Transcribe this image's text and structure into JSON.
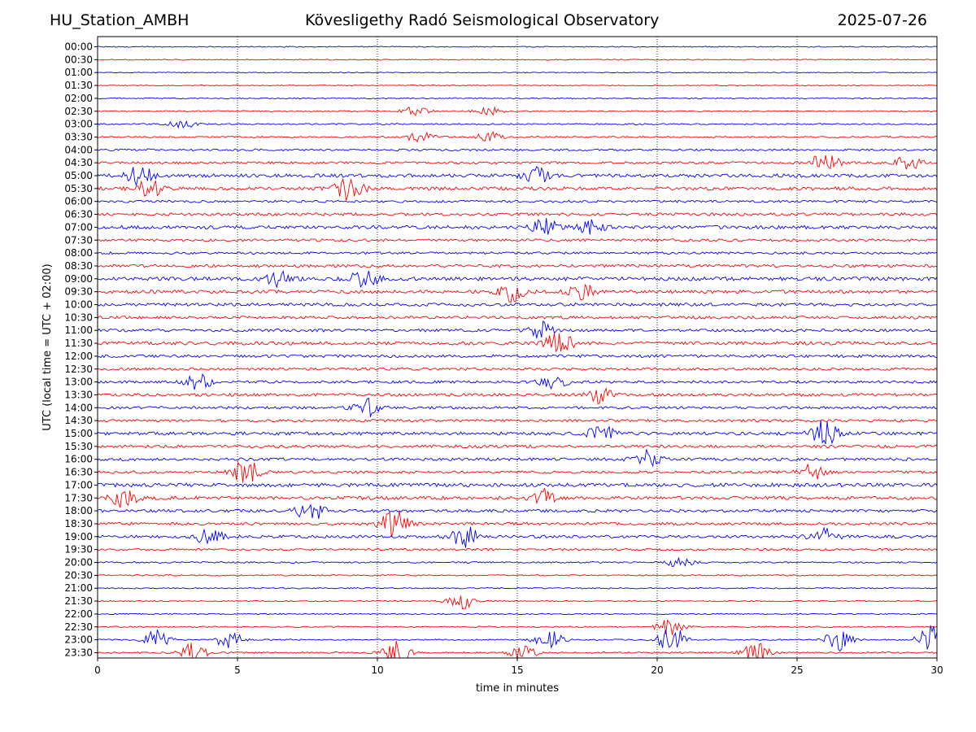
{
  "header": {
    "station": "HU_Station_AMBH",
    "observatory": "Kövesligethy Radó Seismological Observatory",
    "date": "2025-07-26"
  },
  "chart_data": {
    "type": "line",
    "xlabel": "time in minutes",
    "ylabel": "UTC (local time = UTC + 02:00)",
    "xlim": [
      0,
      30
    ],
    "xticks": [
      0,
      5,
      10,
      15,
      20,
      25,
      30
    ],
    "x_gridlines": [
      5,
      10,
      15,
      20,
      25
    ],
    "grid": "vertical dotted",
    "trace_colors": [
      "#0000ff",
      "#ff0000"
    ],
    "rows": [
      "00:00",
      "00:30",
      "01:00",
      "01:30",
      "02:00",
      "02:30",
      "03:00",
      "03:30",
      "04:00",
      "04:30",
      "05:00",
      "05:30",
      "06:00",
      "06:30",
      "07:00",
      "07:30",
      "08:00",
      "08:30",
      "09:00",
      "09:30",
      "10:00",
      "10:30",
      "11:00",
      "11:30",
      "12:00",
      "12:30",
      "13:00",
      "13:30",
      "14:00",
      "14:30",
      "15:00",
      "15:30",
      "16:00",
      "16:30",
      "17:00",
      "17:30",
      "18:00",
      "18:30",
      "19:00",
      "19:30",
      "20:00",
      "20:30",
      "21:00",
      "21:30",
      "22:00",
      "22:30",
      "23:00",
      "23:30"
    ],
    "noise_level": [
      0.4,
      0.4,
      0.35,
      0.35,
      0.45,
      0.45,
      0.55,
      0.6,
      0.8,
      0.9,
      1.3,
      1.3,
      0.9,
      1.1,
      1.3,
      1.0,
      0.9,
      1.1,
      1.4,
      1.3,
      1.2,
      1.1,
      1.1,
      1.3,
      1.1,
      1.0,
      1.0,
      1.1,
      1.0,
      1.0,
      1.2,
      1.1,
      1.1,
      1.0,
      1.4,
      1.3,
      1.1,
      1.1,
      1.1,
      0.8,
      0.6,
      0.5,
      0.45,
      0.45,
      0.45,
      0.5,
      0.5,
      0.6
    ],
    "events": [
      {
        "row": "02:30",
        "minute": 11.3,
        "amplitude": 1.2
      },
      {
        "row": "02:30",
        "minute": 14.0,
        "amplitude": 0.9
      },
      {
        "row": "03:00",
        "minute": 3.0,
        "amplitude": 0.8
      },
      {
        "row": "03:30",
        "minute": 11.5,
        "amplitude": 1.1
      },
      {
        "row": "03:30",
        "minute": 14.0,
        "amplitude": 1.0
      },
      {
        "row": "04:30",
        "minute": 26.0,
        "amplitude": 2.5
      },
      {
        "row": "04:30",
        "minute": 29.0,
        "amplitude": 1.6
      },
      {
        "row": "05:00",
        "minute": 1.5,
        "amplitude": 2.2
      },
      {
        "row": "05:00",
        "minute": 15.7,
        "amplitude": 1.6
      },
      {
        "row": "05:30",
        "minute": 1.8,
        "amplitude": 2.0
      },
      {
        "row": "05:30",
        "minute": 9.0,
        "amplitude": 2.4
      },
      {
        "row": "07:00",
        "minute": 16.0,
        "amplitude": 1.6
      },
      {
        "row": "07:00",
        "minute": 17.6,
        "amplitude": 1.4
      },
      {
        "row": "09:00",
        "minute": 9.5,
        "amplitude": 2.3
      },
      {
        "row": "09:00",
        "minute": 6.5,
        "amplitude": 1.6
      },
      {
        "row": "09:30",
        "minute": 14.8,
        "amplitude": 2.0
      },
      {
        "row": "09:30",
        "minute": 17.3,
        "amplitude": 1.6
      },
      {
        "row": "11:00",
        "minute": 15.8,
        "amplitude": 1.8
      },
      {
        "row": "11:30",
        "minute": 16.5,
        "amplitude": 2.4
      },
      {
        "row": "13:00",
        "minute": 3.6,
        "amplitude": 1.6
      },
      {
        "row": "13:00",
        "minute": 16.3,
        "amplitude": 1.5
      },
      {
        "row": "13:30",
        "minute": 18.0,
        "amplitude": 1.8
      },
      {
        "row": "14:00",
        "minute": 9.6,
        "amplitude": 1.8
      },
      {
        "row": "15:00",
        "minute": 26.0,
        "amplitude": 2.8
      },
      {
        "row": "15:00",
        "minute": 18.0,
        "amplitude": 1.6
      },
      {
        "row": "16:00",
        "minute": 19.6,
        "amplitude": 2.0
      },
      {
        "row": "16:30",
        "minute": 5.3,
        "amplitude": 2.6
      },
      {
        "row": "16:30",
        "minute": 25.5,
        "amplitude": 1.6
      },
      {
        "row": "17:30",
        "minute": 1.0,
        "amplitude": 2.0
      },
      {
        "row": "17:30",
        "minute": 16.0,
        "amplitude": 1.7
      },
      {
        "row": "18:00",
        "minute": 7.6,
        "amplitude": 2.2
      },
      {
        "row": "18:30",
        "minute": 10.6,
        "amplitude": 2.8
      },
      {
        "row": "19:00",
        "minute": 4.0,
        "amplitude": 1.8
      },
      {
        "row": "19:00",
        "minute": 13.1,
        "amplitude": 2.3
      },
      {
        "row": "19:00",
        "minute": 26.0,
        "amplitude": 2.4
      },
      {
        "row": "20:00",
        "minute": 20.8,
        "amplitude": 1.0
      },
      {
        "row": "21:30",
        "minute": 13.0,
        "amplitude": 1.6
      },
      {
        "row": "22:30",
        "minute": 20.5,
        "amplitude": 2.2
      },
      {
        "row": "23:00",
        "minute": 2.1,
        "amplitude": 2.0
      },
      {
        "row": "23:00",
        "minute": 4.7,
        "amplitude": 1.8
      },
      {
        "row": "23:00",
        "minute": 16.1,
        "amplitude": 2.2
      },
      {
        "row": "23:00",
        "minute": 20.5,
        "amplitude": 3.0
      },
      {
        "row": "23:00",
        "minute": 26.5,
        "amplitude": 2.2
      },
      {
        "row": "23:00",
        "minute": 29.8,
        "amplitude": 3.0
      },
      {
        "row": "23:30",
        "minute": 3.4,
        "amplitude": 2.0
      },
      {
        "row": "23:30",
        "minute": 10.7,
        "amplitude": 2.4
      },
      {
        "row": "23:30",
        "minute": 23.5,
        "amplitude": 2.2
      },
      {
        "row": "23:30",
        "minute": 15.2,
        "amplitude": 1.6
      }
    ]
  }
}
